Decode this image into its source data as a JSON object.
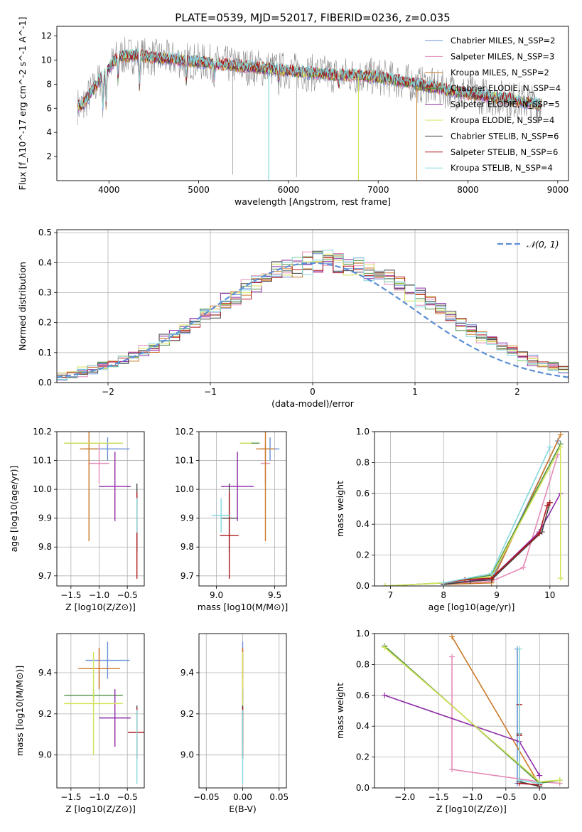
{
  "figure": {
    "title": "PLATE=0539, MJD=52017, FIBERID=0236, z=0.035"
  },
  "chart_data": [
    {
      "id": "spectrum",
      "type": "line",
      "xlabel": "wavelength [Angstrom, rest frame]",
      "ylabel": "Flux [f_λ10^-17 erg cm^-2 s^-1 A^-1]",
      "xlim": [
        3420,
        9120
      ],
      "ylim": [
        0,
        12.8
      ],
      "xticks": [
        4000,
        5000,
        6000,
        7000,
        8000,
        9000
      ],
      "yticks": [
        2,
        4,
        6,
        8,
        10,
        12
      ],
      "grid": false,
      "legend_position": "top-right",
      "data": {
        "x": [
          3700,
          3900,
          4100,
          4300,
          4500,
          4800,
          5200,
          5600,
          6000,
          6500,
          7000,
          7500,
          8000,
          8500,
          8800
        ],
        "y": [
          6.2,
          8.4,
          10.3,
          10.4,
          10.2,
          10.0,
          9.7,
          9.4,
          9.1,
          8.8,
          8.6,
          7.9,
          7.2,
          6.7,
          6.3
        ]
      },
      "series": [
        {
          "name": "Chabrier MILES, N_SSP=2",
          "color": "#6a8fd6"
        },
        {
          "name": "Salpeter MILES, N_SSP=3",
          "color": "#e58bb8"
        },
        {
          "name": "Kroupa MILES, N_SSP=2",
          "color": "#cc7a29"
        },
        {
          "name": "Chabrier ELODIE, N_SSP=4",
          "color": "#4f9141"
        },
        {
          "name": "Salpeter ELODIE, N_SSP=5",
          "color": "#8e2aa8"
        },
        {
          "name": "Kroupa ELODIE, N_SSP=4",
          "color": "#d4e35a"
        },
        {
          "name": "Chabrier STELIB, N_SSP=6",
          "color": "#444444"
        },
        {
          "name": "Salpeter STELIB, N_SSP=6",
          "color": "#b2181b"
        },
        {
          "name": "Kroupa STELIB, N_SSP=4",
          "color": "#86d8dd"
        }
      ]
    },
    {
      "id": "residuals",
      "type": "line",
      "xlabel": "(data-model)/error",
      "ylabel": "Normed distribution",
      "xlim": [
        -2.5,
        2.5
      ],
      "ylim": [
        0,
        0.51
      ],
      "xticks": [
        -2,
        -1,
        0,
        1,
        2
      ],
      "yticks": [
        0.0,
        0.1,
        0.2,
        0.3,
        0.4,
        0.5
      ],
      "grid": true,
      "legend": "𝒩(0, 1)",
      "legend_position": "top-right",
      "gaussian_color": "#5b8ed6"
    },
    {
      "id": "age-vs-Z",
      "type": "scatter",
      "xlabel": "Z [log10(Z/Z⊙)]",
      "ylabel": "age [log10(age/yr)]",
      "xlim": [
        -1.75,
        -0.2
      ],
      "ylim": [
        9.665,
        10.2
      ],
      "xticks": [
        -1.5,
        -1.0,
        -0.5
      ],
      "yticks": [
        9.7,
        9.8,
        9.9,
        10.0,
        10.1,
        10.2
      ],
      "grid": true,
      "points": [
        {
          "x": -0.85,
          "xerr": 0.39,
          "y": 10.14,
          "yerr": 0.04,
          "color": "#6a8fd6"
        },
        {
          "x": -1.0,
          "xerr": 0.18,
          "y": 10.09,
          "yerr": 0.07,
          "color": "#e58bb8"
        },
        {
          "x": -1.18,
          "xerr": 0.16,
          "y": 10.14,
          "yerr": 0.32,
          "color": "#cc7a29"
        },
        {
          "x": -1.1,
          "xerr": 0.52,
          "y": 10.16,
          "yerr": 0.0,
          "color": "#4f9141"
        },
        {
          "x": -0.72,
          "xerr": 0.28,
          "y": 10.01,
          "yerr": 0.12,
          "color": "#8e2aa8"
        },
        {
          "x": -1.1,
          "xerr": 0.52,
          "y": 10.16,
          "yerr": 0.0,
          "color": "#d4e35a"
        },
        {
          "x": -0.33,
          "xerr": 0.0,
          "y": 9.9,
          "yerr": 0.12,
          "color": "#444444"
        },
        {
          "x": -0.33,
          "xerr": 0.0,
          "y": 9.84,
          "yerr": 0.15,
          "color": "#b2181b"
        },
        {
          "x": -0.33,
          "xerr": 0.0,
          "y": 9.91,
          "yerr": 0.06,
          "color": "#86d8dd"
        }
      ]
    },
    {
      "id": "age-vs-mass",
      "type": "scatter",
      "xlabel": "mass [log10(M/M⊙)]",
      "ylabel": "",
      "xlim": [
        8.85,
        9.6
      ],
      "ylim": [
        9.665,
        10.2
      ],
      "xticks": [
        9.0,
        9.5
      ],
      "yticks": [
        9.7,
        9.8,
        9.9,
        10.0,
        10.1,
        10.2
      ],
      "grid": true,
      "points": [
        {
          "x": 9.46,
          "xerr": 0.08,
          "y": 10.14,
          "yerr": 0.04,
          "color": "#6a8fd6"
        },
        {
          "x": 9.42,
          "xerr": 0.04,
          "y": 10.09,
          "yerr": 0.07,
          "color": "#e58bb8"
        },
        {
          "x": 9.42,
          "xerr": 0.08,
          "y": 10.14,
          "yerr": 0.32,
          "color": "#cc7a29"
        },
        {
          "x": 9.29,
          "xerr": 0.08,
          "y": 10.16,
          "yerr": 0.0,
          "color": "#4f9141"
        },
        {
          "x": 9.18,
          "xerr": 0.14,
          "y": 10.01,
          "yerr": 0.12,
          "color": "#8e2aa8"
        },
        {
          "x": 9.25,
          "xerr": 0.05,
          "y": 10.16,
          "yerr": 0.0,
          "color": "#d4e35a"
        },
        {
          "x": 9.11,
          "xerr": 0.07,
          "y": 9.9,
          "yerr": 0.12,
          "color": "#444444"
        },
        {
          "x": 9.11,
          "xerr": 0.08,
          "y": 9.84,
          "yerr": 0.15,
          "color": "#b2181b"
        },
        {
          "x": 9.04,
          "xerr": 0.08,
          "y": 9.91,
          "yerr": 0.06,
          "color": "#86d8dd"
        }
      ]
    },
    {
      "id": "weight-vs-age",
      "type": "line",
      "xlabel": "age [log10(age/yr)]",
      "ylabel": "mass weight",
      "xlim": [
        6.7,
        10.35
      ],
      "ylim": [
        0,
        1.0
      ],
      "xticks": [
        7,
        8,
        9,
        10
      ],
      "yticks": [
        0.0,
        0.2,
        0.4,
        0.6,
        0.8,
        1.0
      ],
      "grid": true,
      "series": [
        {
          "color": "#6a8fd6",
          "x": [
            8.0,
            8.9,
            10.15
          ],
          "y": [
            0.02,
            0.04,
            0.94
          ]
        },
        {
          "color": "#e58bb8",
          "x": [
            8.0,
            8.9,
            9.5,
            10.15
          ],
          "y": [
            0.01,
            0.03,
            0.12,
            0.85
          ]
        },
        {
          "color": "#cc7a29",
          "x": [
            8.0,
            8.9,
            10.2
          ],
          "y": [
            0.01,
            0.02,
            0.98
          ]
        },
        {
          "color": "#4f9141",
          "x": [
            6.9,
            8.0,
            8.9,
            10.2
          ],
          "y": [
            0.0,
            0.02,
            0.07,
            0.92
          ]
        },
        {
          "color": "#8e2aa8",
          "x": [
            8.0,
            8.9,
            9.8,
            10.2
          ],
          "y": [
            0.01,
            0.05,
            0.35,
            0.6
          ]
        },
        {
          "color": "#d4e35a",
          "x": [
            6.9,
            8.0,
            8.9,
            10.2,
            10.2
          ],
          "y": [
            0.0,
            0.02,
            0.06,
            0.9,
            0.05
          ]
        },
        {
          "color": "#444444",
          "x": [
            8.0,
            8.5,
            8.9,
            9.85,
            10.0
          ],
          "y": [
            0.01,
            0.03,
            0.04,
            0.35,
            0.54
          ]
        },
        {
          "color": "#b2181b",
          "x": [
            8.0,
            8.4,
            8.9,
            9.8,
            9.95,
            10.0
          ],
          "y": [
            0.02,
            0.04,
            0.05,
            0.34,
            0.52,
            0.54
          ]
        },
        {
          "color": "#86d8dd",
          "x": [
            8.0,
            8.9,
            10.0
          ],
          "y": [
            0.02,
            0.08,
            0.9
          ]
        }
      ]
    },
    {
      "id": "mass-vs-Z",
      "type": "scatter",
      "xlabel": "Z [log10(Z/Z⊙)]",
      "ylabel": "mass [log10(M/M⊙)]",
      "xlim": [
        -1.75,
        -0.2
      ],
      "ylim": [
        8.84,
        9.59
      ],
      "xticks": [
        -1.5,
        -1.0,
        -0.5
      ],
      "yticks": [
        9.0,
        9.2,
        9.4
      ],
      "grid": true,
      "points": [
        {
          "x": -0.85,
          "xerr": 0.39,
          "y": 9.46,
          "yerr": 0.09,
          "color": "#6a8fd6"
        },
        {
          "x": -1.0,
          "xerr": 0.18,
          "y": 9.42,
          "yerr": 0.1,
          "color": "#e58bb8"
        },
        {
          "x": -1.0,
          "xerr": 0.37,
          "y": 9.42,
          "yerr": 0.1,
          "color": "#cc7a29"
        },
        {
          "x": -1.1,
          "xerr": 0.52,
          "y": 9.29,
          "yerr": 0.03,
          "color": "#4f9141"
        },
        {
          "x": -0.72,
          "xerr": 0.28,
          "y": 9.18,
          "yerr": 0.14,
          "color": "#8e2aa8"
        },
        {
          "x": -1.1,
          "xerr": 0.52,
          "y": 9.25,
          "yerr": 0.25,
          "color": "#d4e35a"
        },
        {
          "x": -0.33,
          "xerr": 0.0,
          "y": 9.11,
          "yerr": 0.13,
          "color": "#444444"
        },
        {
          "x": -0.33,
          "xerr": 0.16,
          "y": 9.11,
          "yerr": 0.12,
          "color": "#b2181b"
        },
        {
          "x": -0.33,
          "xerr": 0.0,
          "y": 9.04,
          "yerr": 0.18,
          "color": "#86d8dd"
        }
      ]
    },
    {
      "id": "mass-vs-ebv",
      "type": "scatter",
      "xlabel": "E(B-V)",
      "ylabel": "",
      "xlim": [
        -0.06,
        0.06
      ],
      "ylim": [
        8.84,
        9.59
      ],
      "xticks": [
        -0.05,
        0.0,
        0.05
      ],
      "xticklabels": [
        "−0.05",
        "0.00",
        "0.05"
      ],
      "yticks": [
        9.0,
        9.2,
        9.4
      ],
      "grid": true,
      "points": [
        {
          "x": 0.0,
          "xerr": 0.0,
          "y": 9.46,
          "yerr": 0.09,
          "color": "#6a8fd6"
        },
        {
          "x": 0.0,
          "xerr": 0.0,
          "y": 9.42,
          "yerr": 0.1,
          "color": "#e58bb8"
        },
        {
          "x": 0.0,
          "xerr": 0.0,
          "y": 9.42,
          "yerr": 0.1,
          "color": "#cc7a29"
        },
        {
          "x": 0.0,
          "xerr": 0.0,
          "y": 9.29,
          "yerr": 0.03,
          "color": "#4f9141"
        },
        {
          "x": 0.0,
          "xerr": 0.0,
          "y": 9.18,
          "yerr": 0.14,
          "color": "#8e2aa8"
        },
        {
          "x": 0.0,
          "xerr": 0.0,
          "y": 9.25,
          "yerr": 0.25,
          "color": "#d4e35a"
        },
        {
          "x": 0.0,
          "xerr": 0.0,
          "y": 9.11,
          "yerr": 0.13,
          "color": "#444444"
        },
        {
          "x": 0.0,
          "xerr": 0.0,
          "y": 9.11,
          "yerr": 0.12,
          "color": "#b2181b"
        },
        {
          "x": 0.0,
          "xerr": 0.0,
          "y": 9.04,
          "yerr": 0.18,
          "color": "#86d8dd"
        }
      ]
    },
    {
      "id": "weight-vs-Z",
      "type": "line",
      "xlabel": "Z [log10(Z/Z⊙)]",
      "ylabel": "mass weight",
      "xlim": [
        -2.45,
        0.43
      ],
      "ylim": [
        0,
        1.0
      ],
      "xticks": [
        -2.0,
        -1.5,
        -1.0,
        -0.5,
        0.0
      ],
      "xticklabels": [
        "−2.0",
        "−1.5",
        "−1.0",
        "−0.5",
        "0.0"
      ],
      "yticks": [
        0.0,
        0.2,
        0.4,
        0.6,
        0.8,
        1.0
      ],
      "grid": true,
      "series": [
        {
          "color": "#6a8fd6",
          "x": [
            -0.33,
            -0.33,
            0.0
          ],
          "y": [
            0.9,
            0.03,
            0.02
          ]
        },
        {
          "color": "#e58bb8",
          "x": [
            -1.3,
            -1.3,
            0.0,
            0.3
          ],
          "y": [
            0.85,
            0.12,
            0.04,
            0.03
          ]
        },
        {
          "color": "#cc7a29",
          "x": [
            -1.3,
            0.0
          ],
          "y": [
            0.98,
            0.02
          ]
        },
        {
          "color": "#4f9141",
          "x": [
            -2.3,
            0.0,
            0.3
          ],
          "y": [
            0.92,
            0.03,
            0.05
          ]
        },
        {
          "color": "#8e2aa8",
          "x": [
            -2.3,
            -0.3,
            0.0
          ],
          "y": [
            0.6,
            0.3,
            0.08
          ]
        },
        {
          "color": "#d4e35a",
          "x": [
            -2.3,
            0.0,
            0.3
          ],
          "y": [
            0.91,
            0.04,
            0.05
          ]
        },
        {
          "color": "#444444",
          "x": [
            -0.3,
            -0.3,
            -0.3,
            0.0
          ],
          "y": [
            0.54,
            0.35,
            0.04,
            0.01
          ]
        },
        {
          "color": "#b2181b",
          "x": [
            -0.3,
            -0.3,
            -0.3,
            0.0
          ],
          "y": [
            0.54,
            0.34,
            0.03,
            0.02
          ]
        },
        {
          "color": "#86d8dd",
          "x": [
            -0.3,
            -0.3,
            0.0
          ],
          "y": [
            0.9,
            0.05,
            0.03
          ]
        }
      ]
    }
  ]
}
